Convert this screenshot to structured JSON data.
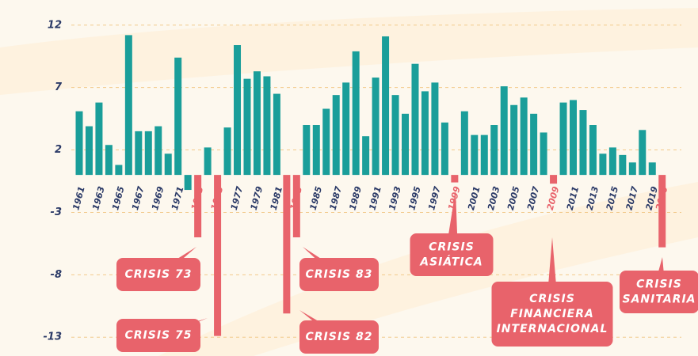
{
  "chart_data": {
    "type": "bar",
    "categories": [
      "1961",
      null,
      "1963",
      null,
      "1965",
      null,
      "1967",
      null,
      "1969",
      null,
      "1971",
      null,
      "1973",
      null,
      "1975",
      null,
      "1977",
      null,
      "1979",
      null,
      "1981",
      null,
      "1983",
      null,
      "1985",
      null,
      "1987",
      null,
      "1989",
      null,
      "1991",
      null,
      "1993",
      null,
      "1995",
      null,
      "1997",
      null,
      "1999",
      null,
      "2001",
      null,
      "2003",
      null,
      "2005",
      null,
      "2007",
      null,
      "2009",
      null,
      "2011",
      null,
      "2013",
      null,
      "2015",
      null,
      "2017",
      null,
      "2019",
      "2020"
    ],
    "values": [
      5.1,
      3.9,
      5.8,
      2.4,
      0.8,
      11.2,
      3.5,
      3.5,
      3.9,
      1.7,
      9.4,
      -1.2,
      -5.0,
      2.2,
      -12.9,
      3.8,
      10.4,
      7.7,
      8.3,
      7.9,
      6.5,
      -11.1,
      -5.0,
      4.0,
      4.0,
      5.3,
      6.4,
      7.4,
      9.9,
      3.1,
      7.8,
      11.1,
      6.4,
      4.9,
      8.9,
      6.7,
      7.4,
      4.2,
      -0.6,
      5.1,
      3.2,
      3.2,
      4.0,
      7.1,
      5.6,
      6.2,
      4.9,
      3.4,
      -0.7,
      5.8,
      6.0,
      5.2,
      4.0,
      1.7,
      2.2,
      1.6,
      1.0,
      3.6,
      1.0,
      -5.8
    ],
    "colors": [
      "#1a9e9a",
      "#1a9e9a",
      "#1a9e9a",
      "#1a9e9a",
      "#1a9e9a",
      "#1a9e9a",
      "#1a9e9a",
      "#1a9e9a",
      "#1a9e9a",
      "#1a9e9a",
      "#1a9e9a",
      "#1a9e9a",
      "#e8636b",
      "#1a9e9a",
      "#e8636b",
      "#1a9e9a",
      "#1a9e9a",
      "#1a9e9a",
      "#1a9e9a",
      "#1a9e9a",
      "#1a9e9a",
      "#e8636b",
      "#e8636b",
      "#1a9e9a",
      "#1a9e9a",
      "#1a9e9a",
      "#1a9e9a",
      "#1a9e9a",
      "#1a9e9a",
      "#1a9e9a",
      "#1a9e9a",
      "#1a9e9a",
      "#1a9e9a",
      "#1a9e9a",
      "#1a9e9a",
      "#1a9e9a",
      "#1a9e9a",
      "#1a9e9a",
      "#e8636b",
      "#1a9e9a",
      "#1a9e9a",
      "#1a9e9a",
      "#1a9e9a",
      "#1a9e9a",
      "#1a9e9a",
      "#1a9e9a",
      "#1a9e9a",
      "#1a9e9a",
      "#e8636b",
      "#1a9e9a",
      "#1a9e9a",
      "#1a9e9a",
      "#1a9e9a",
      "#1a9e9a",
      "#1a9e9a",
      "#1a9e9a",
      "#1a9e9a",
      "#1a9e9a",
      "#1a9e9a",
      "#e8636b"
    ],
    "ylim": [
      -14,
      13
    ],
    "yticks": [
      12,
      7,
      2,
      -3,
      -8,
      -13
    ],
    "grid": true,
    "annotations": [
      [
        "CRISIS 73"
      ],
      [
        "CRISIS 75"
      ],
      [
        "CRISIS 83"
      ],
      [
        "CRISIS 82"
      ],
      [
        "CRISIS",
        "ASIÁTICA"
      ],
      [
        "CRISIS",
        "FINANCIERA",
        "INTERNACIONAL"
      ],
      [
        "CRISIS",
        "SANITARIA"
      ]
    ]
  }
}
